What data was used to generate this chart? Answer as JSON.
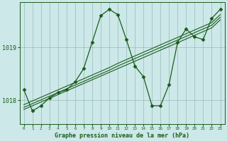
{
  "xlabel": "Graphe pression niveau de la mer (hPa)",
  "ylim": [
    1017.55,
    1019.85
  ],
  "yticks": [
    1018,
    1019
  ],
  "bg_color": "#cce8e8",
  "grid_color": "#99bbbb",
  "line_color": "#1a5c1a",
  "series_main": [
    1018.2,
    1017.8,
    1017.9,
    1018.05,
    1018.15,
    1018.2,
    1018.35,
    1018.6,
    1019.1,
    1019.6,
    1019.72,
    1019.62,
    1019.15,
    1018.65,
    1018.45,
    1017.9,
    1017.9,
    1018.3,
    1019.1,
    1019.35,
    1019.2,
    1019.15,
    1019.55,
    1019.72
  ],
  "series_line1": [
    1017.92,
    1017.99,
    1018.06,
    1018.13,
    1018.2,
    1018.27,
    1018.34,
    1018.41,
    1018.48,
    1018.55,
    1018.62,
    1018.7,
    1018.77,
    1018.84,
    1018.91,
    1018.98,
    1019.05,
    1019.12,
    1019.19,
    1019.26,
    1019.33,
    1019.4,
    1019.47,
    1019.62
  ],
  "series_line2": [
    1017.87,
    1017.94,
    1018.01,
    1018.08,
    1018.15,
    1018.22,
    1018.29,
    1018.36,
    1018.43,
    1018.5,
    1018.57,
    1018.65,
    1018.72,
    1018.79,
    1018.86,
    1018.93,
    1019.0,
    1019.07,
    1019.14,
    1019.21,
    1019.28,
    1019.35,
    1019.42,
    1019.57
  ],
  "series_line3": [
    1017.83,
    1017.9,
    1017.97,
    1018.04,
    1018.11,
    1018.18,
    1018.25,
    1018.32,
    1018.39,
    1018.46,
    1018.53,
    1018.6,
    1018.67,
    1018.74,
    1018.81,
    1018.88,
    1018.95,
    1019.02,
    1019.09,
    1019.16,
    1019.23,
    1019.3,
    1019.37,
    1019.52
  ]
}
